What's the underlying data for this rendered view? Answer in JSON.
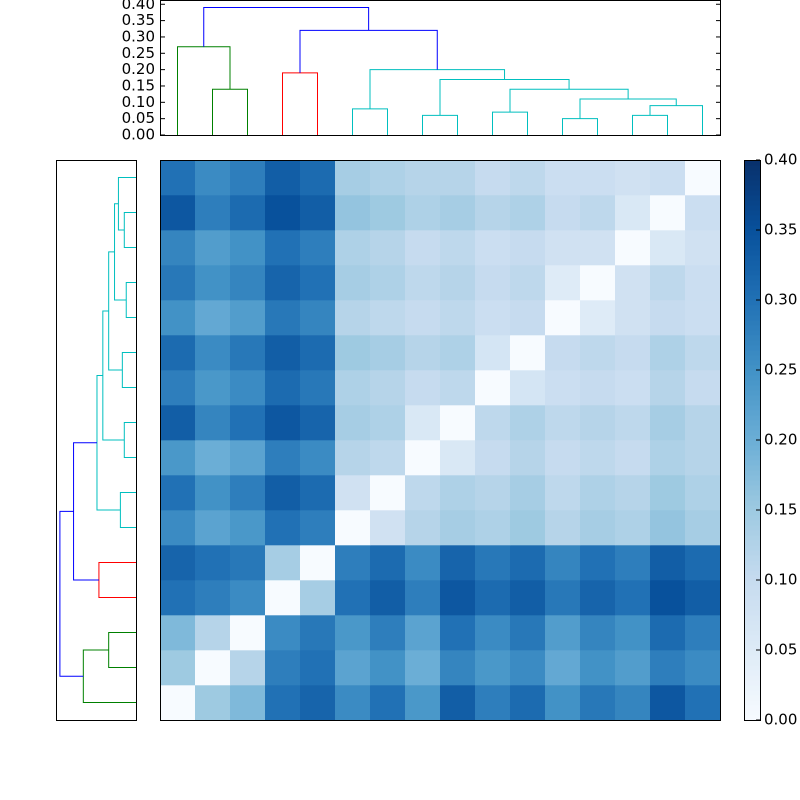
{
  "chart_data": {
    "type": "clustermap",
    "matrix": [
      [
        0,
        0.15,
        0.18,
        0.3,
        0.32,
        0.26,
        0.3,
        0.24,
        0.33,
        0.28,
        0.31,
        0.25,
        0.29,
        0.27,
        0.34,
        0.3
      ],
      [
        0.15,
        0,
        0.12,
        0.28,
        0.3,
        0.22,
        0.25,
        0.2,
        0.27,
        0.24,
        0.26,
        0.21,
        0.25,
        0.23,
        0.28,
        0.26
      ],
      [
        0.18,
        0.12,
        0,
        0.26,
        0.29,
        0.24,
        0.28,
        0.22,
        0.3,
        0.26,
        0.29,
        0.23,
        0.27,
        0.25,
        0.31,
        0.28
      ],
      [
        0.3,
        0.28,
        0.26,
        0,
        0.14,
        0.3,
        0.33,
        0.28,
        0.34,
        0.31,
        0.33,
        0.29,
        0.32,
        0.3,
        0.35,
        0.33
      ],
      [
        0.32,
        0.3,
        0.29,
        0.14,
        0,
        0.28,
        0.31,
        0.26,
        0.32,
        0.29,
        0.31,
        0.27,
        0.3,
        0.28,
        0.33,
        0.31
      ],
      [
        0.26,
        0.22,
        0.24,
        0.3,
        0.28,
        0,
        0.08,
        0.12,
        0.14,
        0.13,
        0.15,
        0.12,
        0.14,
        0.13,
        0.16,
        0.14
      ],
      [
        0.3,
        0.25,
        0.28,
        0.33,
        0.31,
        0.08,
        0,
        0.11,
        0.13,
        0.12,
        0.14,
        0.11,
        0.13,
        0.12,
        0.15,
        0.13
      ],
      [
        0.24,
        0.2,
        0.22,
        0.28,
        0.26,
        0.12,
        0.11,
        0,
        0.06,
        0.1,
        0.12,
        0.1,
        0.11,
        0.1,
        0.13,
        0.12
      ],
      [
        0.33,
        0.27,
        0.3,
        0.34,
        0.32,
        0.14,
        0.13,
        0.06,
        0,
        0.11,
        0.13,
        0.11,
        0.12,
        0.11,
        0.14,
        0.12
      ],
      [
        0.28,
        0.24,
        0.26,
        0.31,
        0.29,
        0.13,
        0.12,
        0.1,
        0.11,
        0,
        0.07,
        0.09,
        0.1,
        0.09,
        0.12,
        0.1
      ],
      [
        0.31,
        0.26,
        0.29,
        0.33,
        0.31,
        0.15,
        0.14,
        0.12,
        0.13,
        0.07,
        0,
        0.1,
        0.11,
        0.1,
        0.13,
        0.11
      ],
      [
        0.25,
        0.21,
        0.23,
        0.29,
        0.27,
        0.12,
        0.11,
        0.1,
        0.11,
        0.09,
        0.1,
        0,
        0.05,
        0.08,
        0.1,
        0.09
      ],
      [
        0.29,
        0.25,
        0.27,
        0.32,
        0.3,
        0.14,
        0.13,
        0.11,
        0.12,
        0.1,
        0.11,
        0.05,
        0,
        0.08,
        0.11,
        0.09
      ],
      [
        0.27,
        0.23,
        0.25,
        0.3,
        0.28,
        0.13,
        0.12,
        0.1,
        0.11,
        0.09,
        0.1,
        0.08,
        0.08,
        0,
        0.06,
        0.08
      ],
      [
        0.34,
        0.28,
        0.31,
        0.35,
        0.33,
        0.16,
        0.15,
        0.13,
        0.14,
        0.12,
        0.13,
        0.1,
        0.11,
        0.06,
        0,
        0.09
      ],
      [
        0.3,
        0.26,
        0.28,
        0.33,
        0.31,
        0.14,
        0.13,
        0.12,
        0.12,
        0.1,
        0.11,
        0.09,
        0.09,
        0.08,
        0.09,
        0
      ]
    ],
    "links": [
      {
        "left": 1,
        "right": 2,
        "height": 0.14,
        "color": "#008000"
      },
      {
        "left": 0,
        "right": 16,
        "height": 0.27,
        "color": "#008000"
      },
      {
        "left": 3,
        "right": 4,
        "height": 0.19,
        "color": "#ff0000"
      },
      {
        "left": 5,
        "right": 6,
        "height": 0.08,
        "color": "#00bfbf"
      },
      {
        "left": 7,
        "right": 8,
        "height": 0.06,
        "color": "#00bfbf"
      },
      {
        "left": 9,
        "right": 10,
        "height": 0.07,
        "color": "#00bfbf"
      },
      {
        "left": 11,
        "right": 12,
        "height": 0.05,
        "color": "#00bfbf"
      },
      {
        "left": 13,
        "right": 14,
        "height": 0.06,
        "color": "#00bfbf"
      },
      {
        "left": 23,
        "right": 15,
        "height": 0.09,
        "color": "#00bfbf"
      },
      {
        "left": 22,
        "right": 24,
        "height": 0.11,
        "color": "#00bfbf"
      },
      {
        "left": 21,
        "right": 25,
        "height": 0.14,
        "color": "#00bfbf"
      },
      {
        "left": 20,
        "right": 26,
        "height": 0.17,
        "color": "#00bfbf"
      },
      {
        "left": 19,
        "right": 27,
        "height": 0.2,
        "color": "#00bfbf"
      },
      {
        "left": 18,
        "right": 28,
        "height": 0.32,
        "color": "#0000ff"
      },
      {
        "left": 17,
        "right": 29,
        "height": 0.39,
        "color": "#0000ff"
      }
    ],
    "ylim": [
      0,
      0.41
    ],
    "yticks": [
      {
        "value": 0,
        "label": "0.00"
      },
      {
        "value": 0.05,
        "label": "0.05"
      },
      {
        "value": 0.1,
        "label": "0.10"
      },
      {
        "value": 0.15,
        "label": "0.15"
      },
      {
        "value": 0.2,
        "label": "0.20"
      },
      {
        "value": 0.25,
        "label": "0.25"
      },
      {
        "value": 0.3,
        "label": "0.30"
      },
      {
        "value": 0.35,
        "label": "0.35"
      },
      {
        "value": 0.4,
        "label": "0.40"
      }
    ],
    "clim": [
      0,
      0.4
    ],
    "cticks": [
      {
        "value": 0,
        "label": "0.00"
      },
      {
        "value": 0.05,
        "label": "0.05"
      },
      {
        "value": 0.1,
        "label": "0.10"
      },
      {
        "value": 0.15,
        "label": "0.15"
      },
      {
        "value": 0.2,
        "label": "0.20"
      },
      {
        "value": 0.25,
        "label": "0.25"
      },
      {
        "value": 0.3,
        "label": "0.30"
      },
      {
        "value": 0.35,
        "label": "0.35"
      },
      {
        "value": 0.4,
        "label": "0.40"
      }
    ],
    "colormap": [
      "#f7fbff",
      "#deebf7",
      "#c6dbef",
      "#9ecae1",
      "#6baed6",
      "#4292c6",
      "#2171b5",
      "#08519c",
      "#08306b"
    ]
  }
}
